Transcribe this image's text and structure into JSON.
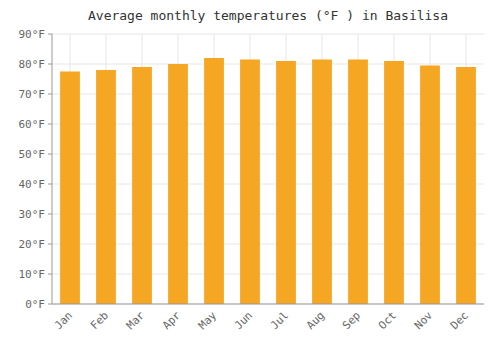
{
  "chart_data": {
    "type": "bar",
    "title": "Average monthly temperatures (°F ) in Basilisa",
    "categories": [
      "Jan",
      "Feb",
      "Mar",
      "Apr",
      "May",
      "Jun",
      "Jul",
      "Aug",
      "Sep",
      "Oct",
      "Nov",
      "Dec"
    ],
    "values": [
      77.5,
      78.0,
      79.0,
      80.0,
      82.0,
      81.5,
      81.0,
      81.5,
      81.5,
      81.0,
      79.5,
      79.0
    ],
    "color": "#F5A623",
    "ylim": [
      0,
      90
    ],
    "yticks": [
      {
        "value": 0,
        "label": "0°F"
      },
      {
        "value": 10,
        "label": "10°F"
      },
      {
        "value": 20,
        "label": "20°F"
      },
      {
        "value": 30,
        "label": "30°F"
      },
      {
        "value": 40,
        "label": "40°F"
      },
      {
        "value": 50,
        "label": "50°F"
      },
      {
        "value": 60,
        "label": "60°F"
      },
      {
        "value": 70,
        "label": "70°F"
      },
      {
        "value": 80,
        "label": "80°F"
      },
      {
        "value": 90,
        "label": "90°F"
      }
    ],
    "grid": true
  }
}
